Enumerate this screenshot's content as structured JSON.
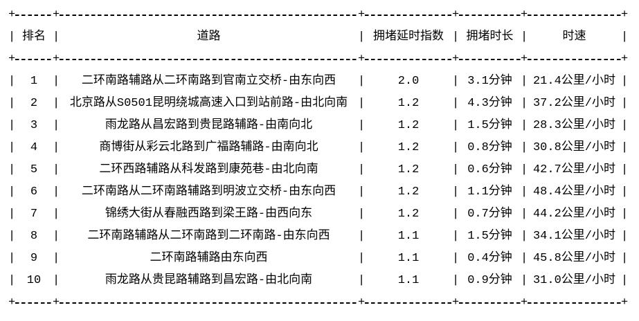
{
  "colors": {
    "text": "#000000",
    "background": "#ffffff"
  },
  "chart_data": {
    "type": "table",
    "title": "",
    "columns": [
      "排名",
      "道路",
      "拥堵延时指数",
      "拥堵时长",
      "时速"
    ],
    "rows": [
      {
        "rank": "1",
        "road": "二环南路辅路从二环南路到官南立交桥-由东向西",
        "index": "2.0",
        "duration": "3.1分钟",
        "speed": "21.4公里/小时"
      },
      {
        "rank": "2",
        "road": "北京路从S0501昆明绕城高速入口到站前路-由北向南",
        "index": "1.2",
        "duration": "4.3分钟",
        "speed": "37.2公里/小时"
      },
      {
        "rank": "3",
        "road": "雨龙路从昌宏路到贵昆路辅路-由南向北",
        "index": "1.2",
        "duration": "1.5分钟",
        "speed": "28.3公里/小时"
      },
      {
        "rank": "4",
        "road": "商博街从彩云北路到广福路辅路-由南向北",
        "index": "1.2",
        "duration": "0.8分钟",
        "speed": "30.8公里/小时"
      },
      {
        "rank": "5",
        "road": "二环西路辅路从科发路到康苑巷-由北向南",
        "index": "1.2",
        "duration": "0.6分钟",
        "speed": "42.7公里/小时"
      },
      {
        "rank": "6",
        "road": "二环南路从二环南路辅路到明波立交桥-由东向西",
        "index": "1.2",
        "duration": "1.1分钟",
        "speed": "48.4公里/小时"
      },
      {
        "rank": "7",
        "road": "锦绣大街从春融西路到梁王路-由西向东",
        "index": "1.2",
        "duration": "0.7分钟",
        "speed": "44.2公里/小时"
      },
      {
        "rank": "8",
        "road": "二环南路辅路从二环南路到二环南路-由东向西",
        "index": "1.1",
        "duration": "1.5分钟",
        "speed": "34.1公里/小时"
      },
      {
        "rank": "9",
        "road": "二环南路辅路由东向西",
        "index": "1.1",
        "duration": "0.4分钟",
        "speed": "45.8公里/小时"
      },
      {
        "rank": "10",
        "road": "雨龙路从贵昆路辅路到昌宏路-由北向南",
        "index": "1.1",
        "duration": "0.9分钟",
        "speed": "31.0公里/小时"
      }
    ]
  }
}
